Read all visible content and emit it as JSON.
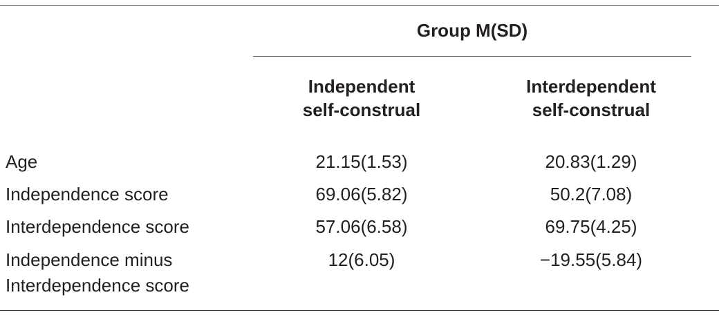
{
  "table": {
    "group_header": "Group M(SD)",
    "columns": [
      {
        "line1": "Independent",
        "line2": "self-construal"
      },
      {
        "line1": "Interdependent",
        "line2": "self-construal"
      }
    ],
    "rows": [
      {
        "label_line1": "Age",
        "label_line2": "",
        "col1": "21.15(1.53)",
        "col2": "20.83(1.29)"
      },
      {
        "label_line1": "Independence score",
        "label_line2": "",
        "col1": "69.06(5.82)",
        "col2": "50.2(7.08)"
      },
      {
        "label_line1": "Interdependence score",
        "label_line2": "",
        "col1": "57.06(6.58)",
        "col2": "69.75(4.25)"
      },
      {
        "label_line1": "Independence minus",
        "label_line2": "Interdependence score",
        "col1": "12(6.05)",
        "col2": "−19.55(5.84)"
      }
    ]
  }
}
